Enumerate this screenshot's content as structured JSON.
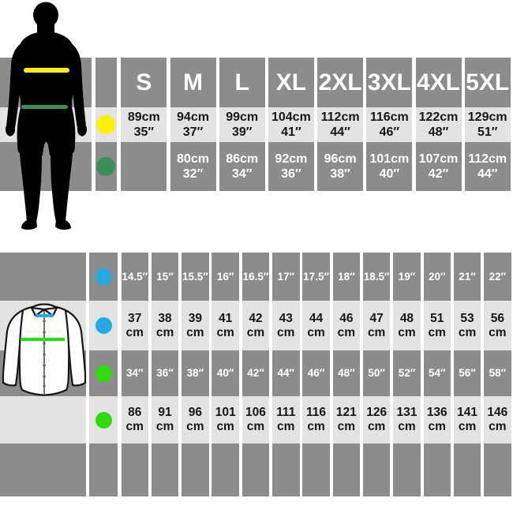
{
  "colors": {
    "band_dark": "#8c8c8c",
    "band_light": "#e3e3e3",
    "text_on_dark": "#ffffff",
    "text_on_light": "#161616",
    "dot_yellow": "#fff200",
    "dot_green": "#3e8c57",
    "dot_blue": "#26a9e0",
    "dot_lime": "#2edc0c",
    "line_yellow": "#fff200",
    "line_green": "#3e8c57",
    "line_blue": "#26a9e0",
    "line_lime": "#1ae50f",
    "silhouette": "#000000"
  },
  "top_table": {
    "header_sizes": [
      "S",
      "M",
      "L",
      "XL",
      "2XL",
      "3XL",
      "4XL",
      "5XL"
    ],
    "rows": [
      {
        "dot": "yellow",
        "shade": "light",
        "cells": [
          [
            "89cm",
            "35″"
          ],
          [
            "94cm",
            "37″"
          ],
          [
            "99cm",
            "39″"
          ],
          [
            "104cm",
            "41″"
          ],
          [
            "112cm",
            "44″"
          ],
          [
            "116cm",
            "46″"
          ],
          [
            "122cm",
            "48″"
          ],
          [
            "129cm",
            "51″"
          ]
        ]
      },
      {
        "dot": "green",
        "shade": "dark",
        "cells": [
          [
            "",
            ""
          ],
          [
            "80cm",
            "32″"
          ],
          [
            "86cm",
            "34″"
          ],
          [
            "92cm",
            "36″"
          ],
          [
            "96cm",
            "38″"
          ],
          [
            "101cm",
            "40″"
          ],
          [
            "107cm",
            "42″"
          ],
          [
            "112cm",
            "44″"
          ]
        ]
      }
    ]
  },
  "bottom_table": {
    "rows": [
      {
        "dot": "blue",
        "shade": "dark",
        "size": "f13",
        "cells": [
          [
            "14.5″"
          ],
          [
            "15″"
          ],
          [
            "15.5″"
          ],
          [
            "16″"
          ],
          [
            "16.5″"
          ],
          [
            "17″"
          ],
          [
            "17.5″"
          ],
          [
            "18″"
          ],
          [
            "18.5″"
          ],
          [
            "19″"
          ],
          [
            "20″"
          ],
          [
            "21″"
          ],
          [
            "22″"
          ]
        ]
      },
      {
        "dot": "blue",
        "shade": "light",
        "size": "f15",
        "cells": [
          [
            "37",
            "cm"
          ],
          [
            "38",
            "cm"
          ],
          [
            "39",
            "cm"
          ],
          [
            "41",
            "cm"
          ],
          [
            "42",
            "cm"
          ],
          [
            "43",
            "cm"
          ],
          [
            "44",
            "cm"
          ],
          [
            "46",
            "cm"
          ],
          [
            "47",
            "cm"
          ],
          [
            "48",
            "cm"
          ],
          [
            "51",
            "cm"
          ],
          [
            "53",
            "cm"
          ],
          [
            "56",
            "cm"
          ]
        ]
      },
      {
        "dot": "lime",
        "shade": "dark",
        "size": "f13",
        "cells": [
          [
            "34″"
          ],
          [
            "36″"
          ],
          [
            "38″"
          ],
          [
            "40″"
          ],
          [
            "42″"
          ],
          [
            "44″"
          ],
          [
            "46″"
          ],
          [
            "48″"
          ],
          [
            "50″"
          ],
          [
            "52″"
          ],
          [
            "54″"
          ],
          [
            "56″"
          ],
          [
            "58″"
          ]
        ]
      },
      {
        "dot": "lime",
        "shade": "light",
        "size": "f15",
        "cells": [
          [
            "86",
            "cm"
          ],
          [
            "91",
            "cm"
          ],
          [
            "96",
            "cm"
          ],
          [
            "101",
            "cm"
          ],
          [
            "106",
            "cm"
          ],
          [
            "111",
            "cm"
          ],
          [
            "116",
            "cm"
          ],
          [
            "121",
            "cm"
          ],
          [
            "126",
            "cm"
          ],
          [
            "131",
            "cm"
          ],
          [
            "136",
            "cm"
          ],
          [
            "141",
            "cm"
          ],
          [
            "146",
            "cm"
          ]
        ]
      },
      {
        "dot": null,
        "shade": "dark",
        "size": "f13",
        "cells": [
          [],
          [],
          [],
          [],
          [],
          [],
          [],
          [],
          [],
          [],
          [],
          [],
          []
        ]
      }
    ]
  },
  "chart_data": [
    {
      "type": "table",
      "title": "Adult garment size chart (man silhouette: yellow = chest, green = waist)",
      "columns": [
        "S",
        "M",
        "L",
        "XL",
        "2XL",
        "3XL",
        "4XL",
        "5XL"
      ],
      "rows": [
        {
          "label": "chest (yellow)",
          "values_cm": [
            89,
            94,
            99,
            104,
            112,
            116,
            122,
            129
          ],
          "values_in": [
            35,
            37,
            39,
            41,
            44,
            46,
            48,
            51
          ]
        },
        {
          "label": "waist (green)",
          "values_cm": [
            null,
            80,
            86,
            92,
            96,
            101,
            107,
            112
          ],
          "values_in": [
            null,
            32,
            34,
            36,
            38,
            40,
            42,
            44
          ]
        }
      ]
    },
    {
      "type": "table",
      "title": "Shirt size chart (shirt illustration: blue = collar, green = chest)",
      "rows": [
        {
          "label": "collar inches (blue)",
          "values": [
            14.5,
            15,
            15.5,
            16,
            16.5,
            17,
            17.5,
            18,
            18.5,
            19,
            20,
            21,
            22
          ]
        },
        {
          "label": "collar cm (blue)",
          "values": [
            37,
            38,
            39,
            41,
            42,
            43,
            44,
            46,
            47,
            48,
            51,
            53,
            56
          ]
        },
        {
          "label": "chest inches (green)",
          "values": [
            34,
            36,
            38,
            40,
            42,
            44,
            46,
            48,
            50,
            52,
            54,
            56,
            58
          ]
        },
        {
          "label": "chest cm (green)",
          "values": [
            86,
            91,
            96,
            101,
            106,
            111,
            116,
            121,
            126,
            131,
            136,
            141,
            146
          ]
        }
      ]
    }
  ]
}
